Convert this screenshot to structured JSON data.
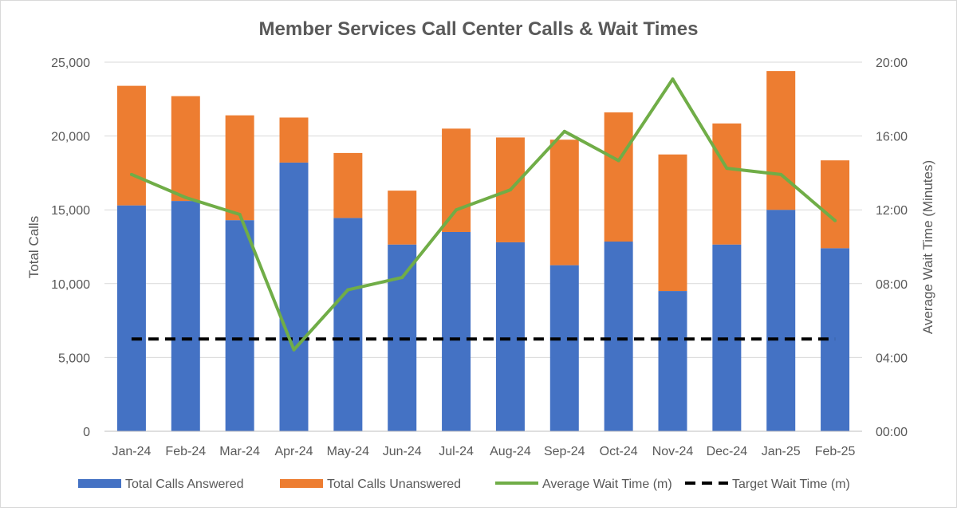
{
  "chart_data": {
    "type": "bar",
    "title": "Member Services Call Center Calls & Wait Times",
    "ylabel": "Total Calls",
    "y2label": "Average Wait Time (Minutes)",
    "ylim": [
      0,
      25000
    ],
    "yticks": [
      "0",
      "5,000",
      "10,000",
      "15,000",
      "20,000",
      "25,000"
    ],
    "y2lim_minutes": [
      0,
      20
    ],
    "y2ticks": [
      "00:00",
      "04:00",
      "08:00",
      "12:00",
      "16:00",
      "20:00"
    ],
    "grid": true,
    "legend_position": "bottom",
    "categories": [
      "Jan-24",
      "Feb-24",
      "Mar-24",
      "Apr-24",
      "May-24",
      "Jun-24",
      "Jul-24",
      "Aug-24",
      "Sep-24",
      "Oct-24",
      "Nov-24",
      "Dec-24",
      "Jan-25",
      "Feb-25"
    ],
    "series": [
      {
        "name": "Total Calls Answered",
        "kind": "stacked-bar",
        "axis": "left",
        "color": "#4472C4",
        "values": [
          15300,
          15600,
          14300,
          18200,
          14450,
          12650,
          13500,
          12800,
          11250,
          12850,
          9500,
          12650,
          15000,
          12400
        ]
      },
      {
        "name": "Total Calls Unanswered",
        "kind": "stacked-bar",
        "axis": "left",
        "color": "#ED7D31",
        "values": [
          8100,
          7100,
          7100,
          3050,
          4400,
          3650,
          7000,
          7100,
          8500,
          8750,
          9250,
          8200,
          9400,
          5950
        ]
      },
      {
        "name": "Average Wait Time (m)",
        "kind": "line",
        "axis": "right",
        "color": "#70AD47",
        "values": [
          "13:55",
          "12:40",
          "11:45",
          "04:25",
          "07:40",
          "08:20",
          "12:00",
          "13:05",
          "16:15",
          "14:40",
          "19:05",
          "14:15",
          "13:55",
          "11:25"
        ]
      },
      {
        "name": "Target Wait Time (m)",
        "kind": "dashed-line",
        "axis": "right",
        "color": "#000000",
        "values": [
          "05:00",
          "05:00",
          "05:00",
          "05:00",
          "05:00",
          "05:00",
          "05:00",
          "05:00",
          "05:00",
          "05:00",
          "05:00",
          "05:00",
          "05:00",
          "05:00"
        ]
      }
    ]
  }
}
